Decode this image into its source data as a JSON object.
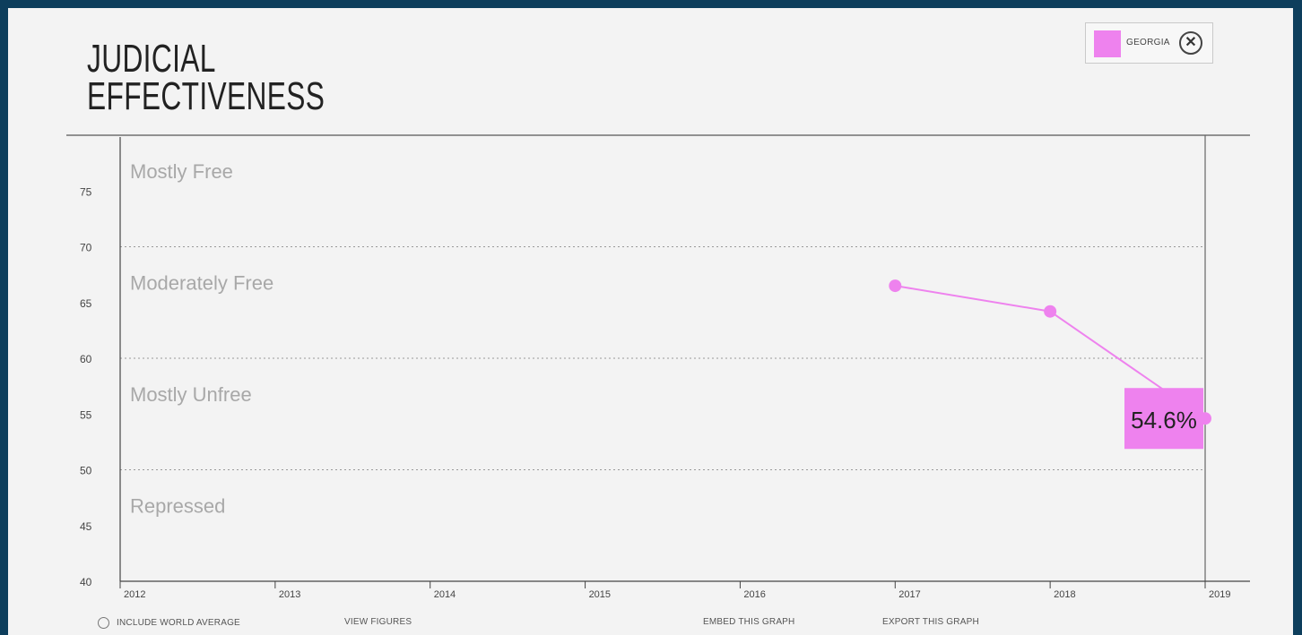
{
  "title_lines": [
    "JUDICIAL",
    "EFFECTIVENESS"
  ],
  "legend": {
    "label": "GEORGIA",
    "color": "#ee82ee",
    "close_icon": "close-circle-icon",
    "close_glyph": "✕"
  },
  "chart_data": {
    "type": "line",
    "title": "JUDICIAL EFFECTIVENESS",
    "x": [
      2012,
      2013,
      2014,
      2015,
      2016,
      2017,
      2018,
      2019
    ],
    "x_tick_labels": [
      "2012",
      "2013",
      "2014",
      "2015",
      "2016",
      "2017",
      "2018",
      "2019"
    ],
    "y_ticks": [
      40,
      45,
      50,
      55,
      60,
      65,
      70,
      75
    ],
    "ylim": [
      40,
      80
    ],
    "xlim": [
      2012,
      2019
    ],
    "bands": [
      {
        "label": "Mostly Free",
        "from": 70,
        "to": 80
      },
      {
        "label": "Moderately Free",
        "from": 60,
        "to": 70
      },
      {
        "label": "Mostly Unfree",
        "from": 50,
        "to": 60
      },
      {
        "label": "Repressed",
        "from": 40,
        "to": 50
      }
    ],
    "series": [
      {
        "name": "GEORGIA",
        "color": "#ee82ee",
        "points": [
          [
            2017,
            66.5
          ],
          [
            2018,
            64.2
          ],
          [
            2019,
            54.6
          ]
        ]
      }
    ],
    "latest_value_label": "54.6%",
    "grid": "dashed horizontal at band boundaries"
  },
  "controls": {
    "include_world_average": "INCLUDE WORLD AVERAGE",
    "view_figures": "VIEW FIGURES",
    "embed": "EMBED THIS GRAPH",
    "export": "EXPORT THIS GRAPH"
  }
}
